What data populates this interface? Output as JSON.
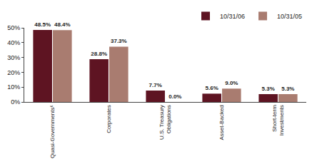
{
  "chart_data": {
    "type": "bar",
    "categories": [
      "Quasi-Governments⁶",
      "Corporates",
      "U.S. Treasury Obligations",
      "Asset-Backed",
      "Short-term Investments"
    ],
    "series": [
      {
        "name": "10/31/06",
        "color": "#5e1422",
        "values": [
          48.5,
          28.8,
          7.7,
          5.6,
          5.3
        ],
        "value_labels": [
          "48.5%",
          "28.8%",
          "7.7%",
          "5.6%",
          "5.3%"
        ]
      },
      {
        "name": "10/31/05",
        "color": "#a97c70",
        "values": [
          48.4,
          37.3,
          0.0,
          9.0,
          5.3
        ],
        "value_labels": [
          "48.4%",
          "37.3%",
          "0.0%",
          "9.0%",
          "5.3%"
        ]
      }
    ],
    "ylim": [
      0,
      50
    ],
    "yticks": [
      {
        "value": 0,
        "label": "0%"
      },
      {
        "value": 10,
        "label": "10%"
      },
      {
        "value": 20,
        "label": "20%"
      },
      {
        "value": 30,
        "label": "30%"
      },
      {
        "value": 40,
        "label": "40%"
      },
      {
        "value": 50,
        "label": "50%"
      }
    ],
    "grid": false,
    "legend": "top right",
    "data_labels": true
  }
}
